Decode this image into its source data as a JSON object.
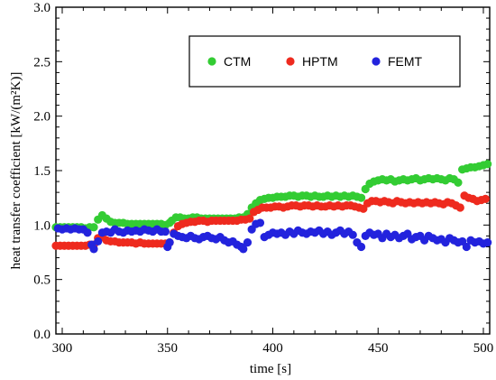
{
  "chart_data": {
    "type": "scatter",
    "xlabel": "time   [s]",
    "ylabel": "heat transfer coefficient   [kW/(m²K)]",
    "xlim": [
      297,
      503
    ],
    "ylim": [
      0.0,
      3.0
    ],
    "xticks": [
      300,
      350,
      400,
      450,
      500
    ],
    "xtick_labels": [
      "300",
      "350",
      "400",
      "450",
      "500"
    ],
    "yticks": [
      0.0,
      0.5,
      1.0,
      1.5,
      2.0,
      2.5,
      3.0
    ],
    "ytick_labels": [
      "0.0",
      "0.5",
      "1.0",
      "1.5",
      "2.0",
      "2.5",
      "3.0"
    ],
    "grid": false,
    "legend": {
      "placement": "top-right",
      "box": true
    },
    "series": [
      {
        "name": "CTM",
        "color": "#33cc33",
        "points": [
          [
            297,
            0.98
          ],
          [
            299,
            0.98
          ],
          [
            301,
            0.98
          ],
          [
            303,
            0.98
          ],
          [
            305,
            0.98
          ],
          [
            307,
            0.98
          ],
          [
            309,
            0.98
          ],
          [
            311,
            0.97
          ],
          [
            313,
            0.98
          ],
          [
            315,
            0.98
          ],
          [
            317,
            1.05
          ],
          [
            319,
            1.09
          ],
          [
            321,
            1.06
          ],
          [
            323,
            1.03
          ],
          [
            325,
            1.02
          ],
          [
            327,
            1.02
          ],
          [
            329,
            1.02
          ],
          [
            331,
            1.01
          ],
          [
            333,
            1.01
          ],
          [
            335,
            1.01
          ],
          [
            337,
            1.01
          ],
          [
            339,
            1.01
          ],
          [
            341,
            1.01
          ],
          [
            343,
            1.01
          ],
          [
            345,
            1.01
          ],
          [
            347,
            1.01
          ],
          [
            349,
            1.0
          ],
          [
            351,
            1.02
          ],
          [
            352,
            1.04
          ],
          [
            354,
            1.07
          ],
          [
            356,
            1.07
          ],
          [
            358,
            1.06
          ],
          [
            360,
            1.06
          ],
          [
            362,
            1.07
          ],
          [
            364,
            1.07
          ],
          [
            366,
            1.06
          ],
          [
            368,
            1.06
          ],
          [
            370,
            1.06
          ],
          [
            372,
            1.06
          ],
          [
            374,
            1.06
          ],
          [
            376,
            1.06
          ],
          [
            378,
            1.06
          ],
          [
            380,
            1.06
          ],
          [
            382,
            1.06
          ],
          [
            384,
            1.07
          ],
          [
            386,
            1.07
          ],
          [
            388,
            1.1
          ],
          [
            390,
            1.16
          ],
          [
            392,
            1.2
          ],
          [
            394,
            1.23
          ],
          [
            396,
            1.24
          ],
          [
            398,
            1.25
          ],
          [
            400,
            1.25
          ],
          [
            402,
            1.26
          ],
          [
            404,
            1.26
          ],
          [
            406,
            1.26
          ],
          [
            408,
            1.27
          ],
          [
            410,
            1.27
          ],
          [
            412,
            1.26
          ],
          [
            414,
            1.27
          ],
          [
            416,
            1.27
          ],
          [
            418,
            1.26
          ],
          [
            420,
            1.27
          ],
          [
            422,
            1.26
          ],
          [
            424,
            1.26
          ],
          [
            426,
            1.27
          ],
          [
            428,
            1.26
          ],
          [
            430,
            1.27
          ],
          [
            432,
            1.26
          ],
          [
            434,
            1.27
          ],
          [
            436,
            1.26
          ],
          [
            438,
            1.27
          ],
          [
            440,
            1.26
          ],
          [
            442,
            1.25
          ],
          [
            444,
            1.33
          ],
          [
            446,
            1.38
          ],
          [
            448,
            1.4
          ],
          [
            450,
            1.41
          ],
          [
            452,
            1.42
          ],
          [
            454,
            1.41
          ],
          [
            456,
            1.42
          ],
          [
            458,
            1.4
          ],
          [
            460,
            1.41
          ],
          [
            462,
            1.42
          ],
          [
            464,
            1.41
          ],
          [
            466,
            1.42
          ],
          [
            468,
            1.43
          ],
          [
            470,
            1.41
          ],
          [
            472,
            1.42
          ],
          [
            474,
            1.43
          ],
          [
            476,
            1.42
          ],
          [
            478,
            1.43
          ],
          [
            480,
            1.42
          ],
          [
            482,
            1.41
          ],
          [
            484,
            1.43
          ],
          [
            486,
            1.42
          ],
          [
            488,
            1.39
          ],
          [
            490,
            1.51
          ],
          [
            492,
            1.52
          ],
          [
            494,
            1.53
          ],
          [
            496,
            1.53
          ],
          [
            498,
            1.54
          ],
          [
            500,
            1.55
          ],
          [
            502,
            1.56
          ]
        ]
      },
      {
        "name": "HPTM",
        "color": "#ee2a1e",
        "points": [
          [
            297,
            0.81
          ],
          [
            299,
            0.81
          ],
          [
            301,
            0.81
          ],
          [
            303,
            0.81
          ],
          [
            305,
            0.81
          ],
          [
            307,
            0.81
          ],
          [
            309,
            0.81
          ],
          [
            311,
            0.81
          ],
          [
            313,
            0.82
          ],
          [
            315,
            0.82
          ],
          [
            317,
            0.88
          ],
          [
            319,
            0.89
          ],
          [
            321,
            0.86
          ],
          [
            323,
            0.85
          ],
          [
            325,
            0.85
          ],
          [
            327,
            0.84
          ],
          [
            329,
            0.84
          ],
          [
            331,
            0.84
          ],
          [
            333,
            0.84
          ],
          [
            335,
            0.83
          ],
          [
            337,
            0.84
          ],
          [
            339,
            0.83
          ],
          [
            341,
            0.83
          ],
          [
            343,
            0.83
          ],
          [
            345,
            0.83
          ],
          [
            347,
            0.83
          ],
          [
            349,
            0.83
          ],
          [
            351,
            0.84
          ],
          [
            353,
            0.93
          ],
          [
            355,
            0.99
          ],
          [
            357,
            1.01
          ],
          [
            359,
            1.02
          ],
          [
            361,
            1.03
          ],
          [
            363,
            1.03
          ],
          [
            365,
            1.04
          ],
          [
            367,
            1.04
          ],
          [
            369,
            1.03
          ],
          [
            371,
            1.04
          ],
          [
            373,
            1.04
          ],
          [
            375,
            1.04
          ],
          [
            377,
            1.04
          ],
          [
            379,
            1.04
          ],
          [
            381,
            1.04
          ],
          [
            383,
            1.04
          ],
          [
            385,
            1.05
          ],
          [
            387,
            1.05
          ],
          [
            389,
            1.06
          ],
          [
            391,
            1.12
          ],
          [
            393,
            1.14
          ],
          [
            395,
            1.16
          ],
          [
            397,
            1.16
          ],
          [
            399,
            1.16
          ],
          [
            401,
            1.17
          ],
          [
            403,
            1.17
          ],
          [
            405,
            1.16
          ],
          [
            407,
            1.17
          ],
          [
            409,
            1.18
          ],
          [
            411,
            1.18
          ],
          [
            413,
            1.17
          ],
          [
            415,
            1.18
          ],
          [
            417,
            1.18
          ],
          [
            419,
            1.17
          ],
          [
            421,
            1.18
          ],
          [
            423,
            1.17
          ],
          [
            425,
            1.17
          ],
          [
            427,
            1.18
          ],
          [
            429,
            1.17
          ],
          [
            431,
            1.18
          ],
          [
            433,
            1.17
          ],
          [
            435,
            1.18
          ],
          [
            437,
            1.18
          ],
          [
            439,
            1.17
          ],
          [
            441,
            1.16
          ],
          [
            443,
            1.15
          ],
          [
            445,
            1.2
          ],
          [
            447,
            1.22
          ],
          [
            449,
            1.22
          ],
          [
            451,
            1.21
          ],
          [
            453,
            1.22
          ],
          [
            455,
            1.21
          ],
          [
            457,
            1.2
          ],
          [
            459,
            1.22
          ],
          [
            461,
            1.21
          ],
          [
            463,
            1.2
          ],
          [
            465,
            1.21
          ],
          [
            467,
            1.2
          ],
          [
            469,
            1.21
          ],
          [
            471,
            1.2
          ],
          [
            473,
            1.21
          ],
          [
            475,
            1.2
          ],
          [
            477,
            1.21
          ],
          [
            479,
            1.2
          ],
          [
            481,
            1.19
          ],
          [
            483,
            1.21
          ],
          [
            485,
            1.2
          ],
          [
            487,
            1.18
          ],
          [
            489,
            1.16
          ],
          [
            491,
            1.27
          ],
          [
            493,
            1.25
          ],
          [
            495,
            1.24
          ],
          [
            497,
            1.22
          ],
          [
            499,
            1.23
          ],
          [
            501,
            1.24
          ]
        ]
      },
      {
        "name": "FEMT",
        "color": "#2323dd",
        "points": [
          [
            298,
            0.97
          ],
          [
            300,
            0.96
          ],
          [
            302,
            0.97
          ],
          [
            304,
            0.96
          ],
          [
            306,
            0.97
          ],
          [
            308,
            0.96
          ],
          [
            310,
            0.96
          ],
          [
            312,
            0.93
          ],
          [
            314,
            0.82
          ],
          [
            315,
            0.78
          ],
          [
            317,
            0.85
          ],
          [
            319,
            0.93
          ],
          [
            321,
            0.94
          ],
          [
            323,
            0.93
          ],
          [
            325,
            0.96
          ],
          [
            327,
            0.94
          ],
          [
            329,
            0.93
          ],
          [
            331,
            0.95
          ],
          [
            333,
            0.94
          ],
          [
            335,
            0.95
          ],
          [
            337,
            0.94
          ],
          [
            339,
            0.96
          ],
          [
            341,
            0.95
          ],
          [
            343,
            0.94
          ],
          [
            345,
            0.96
          ],
          [
            347,
            0.94
          ],
          [
            349,
            0.94
          ],
          [
            350,
            0.8
          ],
          [
            351,
            0.84
          ],
          [
            353,
            0.92
          ],
          [
            355,
            0.9
          ],
          [
            357,
            0.89
          ],
          [
            359,
            0.88
          ],
          [
            361,
            0.9
          ],
          [
            363,
            0.88
          ],
          [
            365,
            0.87
          ],
          [
            367,
            0.89
          ],
          [
            369,
            0.9
          ],
          [
            371,
            0.88
          ],
          [
            373,
            0.87
          ],
          [
            375,
            0.89
          ],
          [
            377,
            0.86
          ],
          [
            379,
            0.84
          ],
          [
            381,
            0.85
          ],
          [
            383,
            0.82
          ],
          [
            385,
            0.8
          ],
          [
            386,
            0.78
          ],
          [
            388,
            0.84
          ],
          [
            390,
            0.96
          ],
          [
            392,
            1.01
          ],
          [
            394,
            1.02
          ],
          [
            396,
            0.89
          ],
          [
            398,
            0.91
          ],
          [
            400,
            0.93
          ],
          [
            402,
            0.92
          ],
          [
            404,
            0.93
          ],
          [
            406,
            0.91
          ],
          [
            408,
            0.94
          ],
          [
            410,
            0.92
          ],
          [
            412,
            0.95
          ],
          [
            414,
            0.93
          ],
          [
            416,
            0.92
          ],
          [
            418,
            0.94
          ],
          [
            420,
            0.93
          ],
          [
            422,
            0.95
          ],
          [
            424,
            0.92
          ],
          [
            426,
            0.94
          ],
          [
            428,
            0.91
          ],
          [
            430,
            0.93
          ],
          [
            432,
            0.95
          ],
          [
            434,
            0.92
          ],
          [
            436,
            0.94
          ],
          [
            438,
            0.91
          ],
          [
            440,
            0.84
          ],
          [
            442,
            0.8
          ],
          [
            444,
            0.9
          ],
          [
            446,
            0.93
          ],
          [
            448,
            0.91
          ],
          [
            450,
            0.92
          ],
          [
            452,
            0.88
          ],
          [
            454,
            0.92
          ],
          [
            456,
            0.89
          ],
          [
            458,
            0.91
          ],
          [
            460,
            0.88
          ],
          [
            462,
            0.9
          ],
          [
            464,
            0.92
          ],
          [
            466,
            0.87
          ],
          [
            468,
            0.89
          ],
          [
            470,
            0.9
          ],
          [
            472,
            0.86
          ],
          [
            474,
            0.9
          ],
          [
            476,
            0.88
          ],
          [
            478,
            0.86
          ],
          [
            480,
            0.87
          ],
          [
            482,
            0.84
          ],
          [
            484,
            0.88
          ],
          [
            486,
            0.86
          ],
          [
            488,
            0.84
          ],
          [
            490,
            0.85
          ],
          [
            492,
            0.8
          ],
          [
            494,
            0.86
          ],
          [
            496,
            0.84
          ],
          [
            498,
            0.85
          ],
          [
            500,
            0.83
          ],
          [
            502,
            0.84
          ]
        ]
      }
    ]
  }
}
